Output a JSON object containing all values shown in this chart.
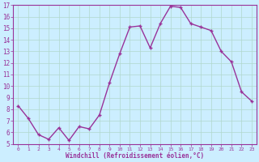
{
  "x": [
    0,
    1,
    2,
    3,
    4,
    5,
    6,
    7,
    8,
    9,
    10,
    11,
    12,
    13,
    14,
    15,
    16,
    17,
    18,
    19,
    20,
    21,
    22,
    23
  ],
  "y": [
    8.3,
    7.2,
    5.8,
    5.4,
    6.4,
    5.3,
    6.5,
    6.3,
    7.5,
    10.3,
    12.8,
    15.1,
    15.2,
    13.3,
    15.4,
    16.9,
    16.8,
    15.4,
    15.1,
    14.8,
    13.0,
    12.1,
    9.5,
    8.7
  ],
  "line_color": "#993399",
  "marker": "+",
  "marker_color": "#993399",
  "bg_color": "#cceeff",
  "grid_color": "#aaddcc",
  "xlabel": "Windchill (Refroidissement éolien,°C)",
  "xlabel_color": "#993399",
  "tick_color": "#993399",
  "ylim": [
    5,
    17
  ],
  "xlim": [
    -0.5,
    23.5
  ],
  "yticks": [
    5,
    6,
    7,
    8,
    9,
    10,
    11,
    12,
    13,
    14,
    15,
    16,
    17
  ],
  "xticks": [
    0,
    1,
    2,
    3,
    4,
    5,
    6,
    7,
    8,
    9,
    10,
    11,
    12,
    13,
    14,
    15,
    16,
    17,
    18,
    19,
    20,
    21,
    22,
    23
  ],
  "linewidth": 1.0,
  "markersize": 3.5
}
